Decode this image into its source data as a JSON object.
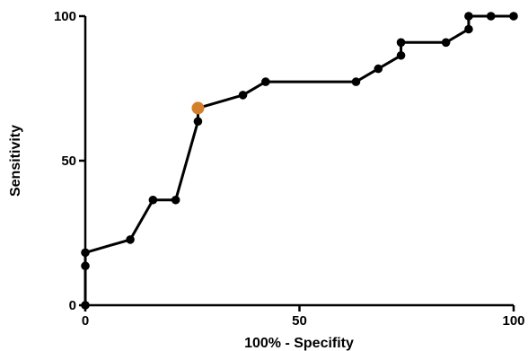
{
  "chart_data": {
    "type": "line",
    "title": "",
    "xlabel": "100% - Specifity",
    "ylabel": "Sensitivity",
    "xlim": [
      0,
      100
    ],
    "ylim": [
      0,
      100
    ],
    "x_ticks": [
      0,
      50,
      100
    ],
    "y_ticks": [
      0,
      50,
      100
    ],
    "x_tick_labels": [
      "0",
      "50",
      "100"
    ],
    "y_tick_labels": [
      "0",
      "50",
      "100"
    ],
    "grid": false,
    "line_color": "#000000",
    "marker_color": "#000000",
    "highlight_color": "#d47f2a",
    "series": [
      {
        "points": [
          {
            "x": 0,
            "y": 0
          },
          {
            "x": 0,
            "y": 13.6
          },
          {
            "x": 0,
            "y": 18.2
          },
          {
            "x": 10.5,
            "y": 22.7
          },
          {
            "x": 15.8,
            "y": 36.4
          },
          {
            "x": 21.1,
            "y": 36.4
          },
          {
            "x": 26.3,
            "y": 63.6
          },
          {
            "x": 26.3,
            "y": 68.2,
            "highlight": true
          },
          {
            "x": 36.8,
            "y": 72.7
          },
          {
            "x": 42.1,
            "y": 77.3
          },
          {
            "x": 63.2,
            "y": 77.3
          },
          {
            "x": 68.4,
            "y": 81.8
          },
          {
            "x": 73.7,
            "y": 86.4
          },
          {
            "x": 73.7,
            "y": 90.9
          },
          {
            "x": 84.2,
            "y": 90.9
          },
          {
            "x": 89.5,
            "y": 95.5
          },
          {
            "x": 89.5,
            "y": 100
          },
          {
            "x": 94.7,
            "y": 100
          },
          {
            "x": 100,
            "y": 100
          }
        ]
      }
    ]
  }
}
